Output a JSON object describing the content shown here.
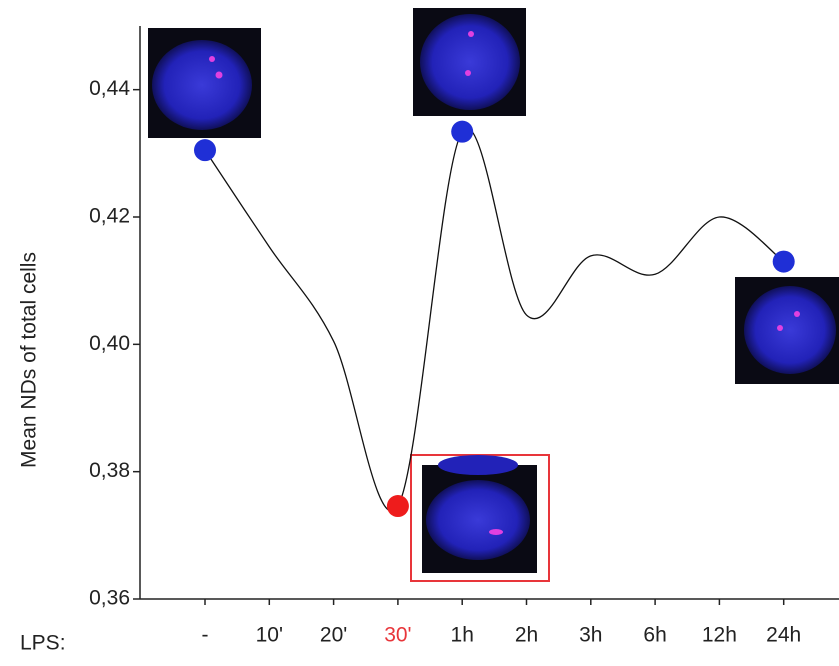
{
  "chart_data": {
    "type": "line",
    "y_label": "Mean NDs of total cells",
    "category_prefix": "LPS:",
    "categories": [
      "-",
      "10'",
      "20'",
      "30'",
      "1h",
      "2h",
      "3h",
      "6h",
      "12h",
      "24h"
    ],
    "category_colors": [
      "#222222",
      "#222222",
      "#222222",
      "#e8353a",
      "#222222",
      "#222222",
      "#222222",
      "#222222",
      "#222222",
      "#222222"
    ],
    "series": [
      {
        "color": "#111111",
        "values": [
          0.4305,
          0.4153,
          0.4005,
          0.3746,
          0.4334,
          0.4046,
          0.4139,
          0.411,
          0.42,
          0.413
        ],
        "marker_colors": [
          "#1f2fd6",
          null,
          null,
          "#ee1c1c",
          "#1f2fd6",
          null,
          null,
          null,
          null,
          "#1f2fd6"
        ]
      }
    ],
    "ylim": [
      0.36,
      0.45
    ],
    "yticks": [
      {
        "value": 0.36,
        "label": "0,36"
      },
      {
        "value": 0.38,
        "label": "0,38"
      },
      {
        "value": 0.4,
        "label": "0,40"
      },
      {
        "value": 0.42,
        "label": "0,42"
      },
      {
        "value": 0.44,
        "label": "0,44"
      }
    ]
  }
}
